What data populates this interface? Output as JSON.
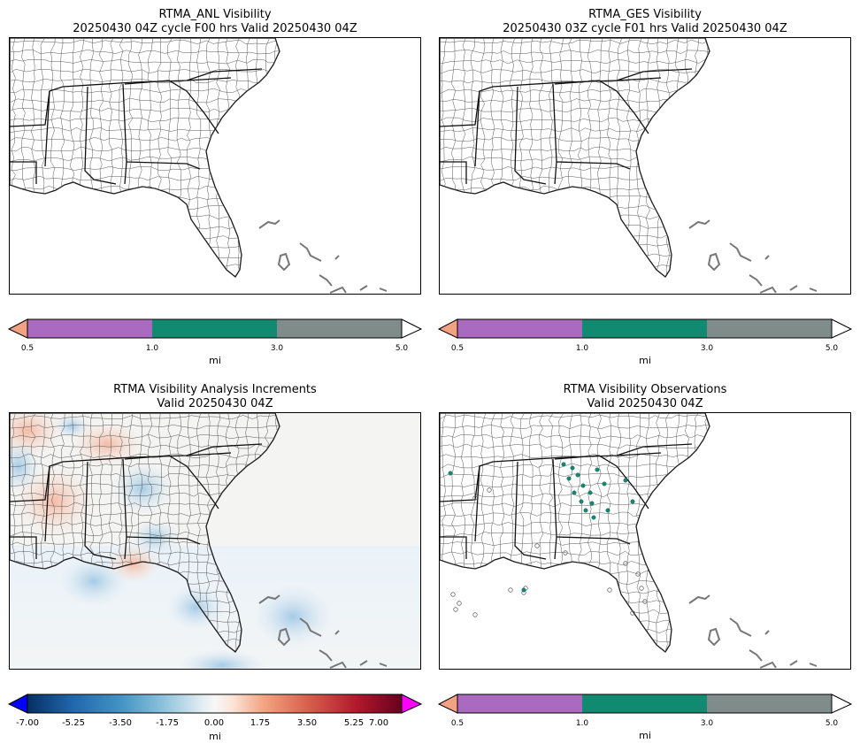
{
  "panels": [
    {
      "id": "anl",
      "title_line1": "RTMA_ANL Visibility",
      "title_line2": "20250430 04Z cycle F00 hrs Valid 20250430 04Z",
      "colorbar": {
        "type": "discrete",
        "unit": "mi",
        "ticks": [
          "0.5",
          "1.0",
          "3.0",
          "5.0"
        ],
        "segment_colors": [
          "#f2a183",
          "#a96ac0",
          "#128a72",
          "#7f8c8a",
          "#ffffff"
        ]
      }
    },
    {
      "id": "ges",
      "title_line1": "RTMA_GES Visibility",
      "title_line2": "20250430 03Z cycle F01 hrs Valid 20250430 04Z",
      "colorbar": {
        "type": "discrete",
        "unit": "mi",
        "ticks": [
          "0.5",
          "1.0",
          "3.0",
          "5.0"
        ],
        "segment_colors": [
          "#f2a183",
          "#a96ac0",
          "#128a72",
          "#7f8c8a",
          "#ffffff"
        ]
      }
    },
    {
      "id": "inc",
      "title_line1": "RTMA Visibility Analysis Increments",
      "title_line2": "Valid 20250430 04Z",
      "colorbar": {
        "type": "diverging",
        "unit": "mi",
        "ticks": [
          "-7.00",
          "-5.25",
          "-3.50",
          "-1.75",
          "0.00",
          "1.75",
          "3.50",
          "5.25",
          "7.00"
        ],
        "under_color": "#0000ff",
        "over_color": "#ff00ff"
      }
    },
    {
      "id": "obs",
      "title_line1": "RTMA Visibility Observations",
      "title_line2": "Valid 20250430 04Z",
      "colorbar": {
        "type": "discrete",
        "unit": "mi",
        "ticks": [
          "0.5",
          "1.0",
          "3.0",
          "5.0"
        ],
        "segment_colors": [
          "#f2a183",
          "#a96ac0",
          "#128a72",
          "#7f8c8a",
          "#ffffff"
        ]
      }
    }
  ]
}
